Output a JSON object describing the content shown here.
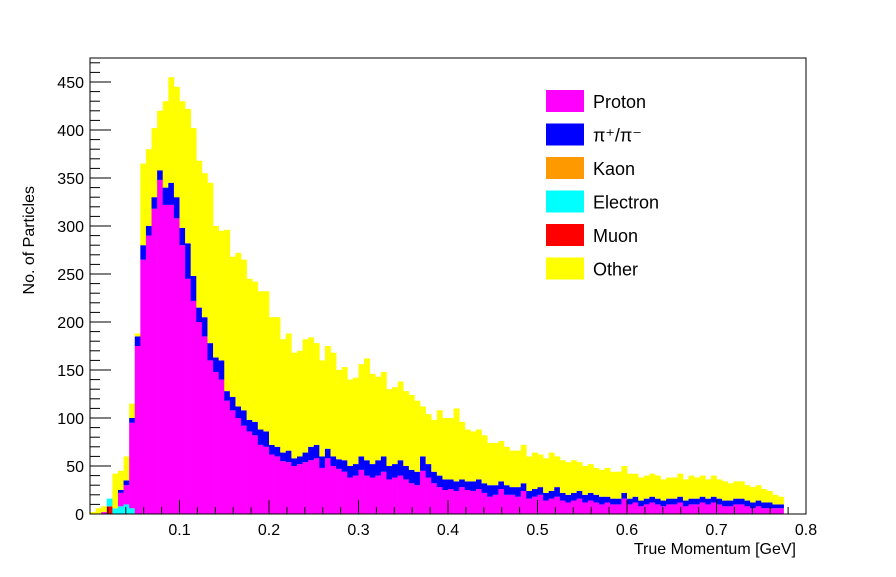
{
  "chart_data": {
    "type": "stacked-histogram",
    "title": "",
    "xlabel": "True Momentum [GeV]",
    "ylabel": "No. of Particles",
    "xlim": [
      0.0,
      0.8
    ],
    "ylim": [
      0,
      475
    ],
    "x_ticks": [
      0.1,
      0.2,
      0.3,
      0.4,
      0.5,
      0.6,
      0.7,
      0.8
    ],
    "x_tick_labels": [
      "0.1",
      "0.2",
      "0.3",
      "0.4",
      "0.5",
      "0.6",
      "0.7",
      "0.8"
    ],
    "y_ticks": [
      0,
      50,
      100,
      150,
      200,
      250,
      300,
      350,
      400,
      450
    ],
    "y_tick_labels": [
      "0",
      "50",
      "100",
      "150",
      "200",
      "250",
      "300",
      "350",
      "400",
      "450"
    ],
    "bin_width": 0.00625,
    "legend_position": "top-right",
    "series": [
      {
        "name": "Proton",
        "color": "#ff00ff"
      },
      {
        "name": "π⁺/π⁻",
        "color": "#0000ff"
      },
      {
        "name": "Kaon",
        "color": "#ff9900"
      },
      {
        "name": "Electron",
        "color": "#00ffff"
      },
      {
        "name": "Muon",
        "color": "#ff0000"
      },
      {
        "name": "Other",
        "color": "#ffff00"
      }
    ],
    "stack_order": [
      "Muon",
      "Electron",
      "Kaon",
      "Proton",
      "π⁺/π⁻",
      "Other"
    ],
    "proton_tops": [
      0,
      0,
      2,
      3,
      6,
      22,
      30,
      95,
      175,
      265,
      290,
      318,
      348,
      322,
      322,
      308,
      280,
      245,
      222,
      200,
      185,
      160,
      148,
      140,
      118,
      108,
      100,
      92,
      86,
      82,
      72,
      70,
      62,
      60,
      55,
      54,
      50,
      52,
      54,
      56,
      58,
      48,
      58,
      50,
      47,
      44,
      38,
      40,
      46,
      40,
      38,
      40,
      44,
      36,
      38,
      40,
      36,
      32,
      30,
      45,
      38,
      32,
      28,
      25,
      26,
      24,
      28,
      25,
      24,
      26,
      22,
      18,
      20,
      26,
      20,
      20,
      18,
      24,
      16,
      18,
      20,
      14,
      16,
      18,
      14,
      12,
      14,
      16,
      12,
      14,
      12,
      10,
      12,
      10,
      10,
      16,
      10,
      12,
      8,
      10,
      12,
      10,
      8,
      10,
      10,
      12,
      8,
      10,
      10,
      12,
      10,
      12,
      10,
      8,
      8,
      10,
      10,
      8,
      6,
      8,
      6,
      6,
      6,
      6
    ],
    "pion_tops": [
      0,
      0,
      2,
      3,
      6,
      25,
      35,
      100,
      185,
      280,
      300,
      330,
      358,
      340,
      345,
      330,
      298,
      282,
      248,
      215,
      205,
      178,
      163,
      160,
      128,
      122,
      112,
      108,
      98,
      96,
      88,
      86,
      72,
      70,
      64,
      66,
      58,
      60,
      64,
      70,
      72,
      60,
      68,
      60,
      57,
      56,
      50,
      52,
      60,
      56,
      52,
      56,
      60,
      50,
      52,
      56,
      50,
      46,
      44,
      60,
      52,
      44,
      40,
      36,
      36,
      34,
      36,
      34,
      34,
      36,
      32,
      30,
      30,
      34,
      30,
      28,
      28,
      32,
      24,
      26,
      28,
      22,
      24,
      28,
      22,
      20,
      22,
      24,
      20,
      22,
      20,
      18,
      18,
      16,
      16,
      22,
      16,
      18,
      14,
      16,
      18,
      16,
      14,
      16,
      16,
      18,
      14,
      16,
      16,
      18,
      16,
      18,
      16,
      14,
      14,
      16,
      16,
      14,
      12,
      14,
      12,
      12,
      10,
      10
    ],
    "total_tops": [
      2,
      6,
      8,
      12,
      42,
      45,
      60,
      115,
      188,
      365,
      380,
      402,
      420,
      430,
      455,
      445,
      430,
      422,
      402,
      368,
      355,
      345,
      300,
      295,
      296,
      268,
      272,
      265,
      245,
      242,
      232,
      232,
      205,
      205,
      182,
      188,
      168,
      170,
      182,
      184,
      178,
      160,
      175,
      168,
      150,
      153,
      140,
      142,
      156,
      162,
      146,
      143,
      148,
      130,
      132,
      138,
      128,
      124,
      118,
      112,
      104,
      98,
      108,
      100,
      100,
      110,
      96,
      88,
      86,
      88,
      82,
      74,
      74,
      76,
      70,
      66,
      66,
      72,
      60,
      64,
      62,
      58,
      64,
      60,
      56,
      54,
      56,
      54,
      50,
      52,
      48,
      46,
      48,
      44,
      44,
      50,
      42,
      42,
      38,
      40,
      42,
      40,
      36,
      38,
      38,
      42,
      36,
      40,
      38,
      40,
      36,
      40,
      36,
      34,
      32,
      34,
      34,
      30,
      28,
      30,
      26,
      24,
      20,
      18
    ],
    "small_species_bins": [
      {
        "bin": 3,
        "electron": 8,
        "muon": 8
      },
      {
        "bin": 4,
        "electron": 6
      },
      {
        "bin": 5,
        "electron": 8
      },
      {
        "bin": 6,
        "electron": 10
      },
      {
        "bin": 7,
        "electron": 6
      }
    ]
  }
}
